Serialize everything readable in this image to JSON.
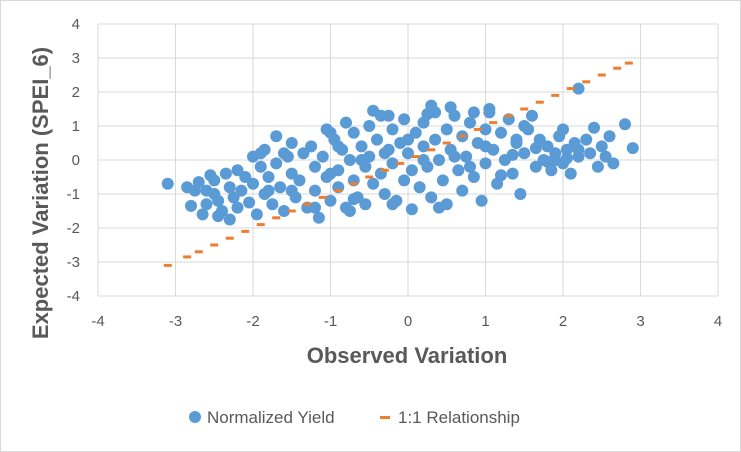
{
  "chart_data": {
    "type": "scatter",
    "title": "",
    "xlabel": "Observed Variation",
    "ylabel": "Expected Variation  (SPEI_6)",
    "xlim": [
      -4,
      4
    ],
    "ylim": [
      -4,
      4
    ],
    "x_ticks": [
      "-4",
      "-3",
      "-2",
      "-1",
      "0",
      "1",
      "2",
      "3",
      "4"
    ],
    "y_ticks": [
      "4",
      "3",
      "2",
      "1",
      "0",
      "-1",
      "-2",
      "-3",
      "-4"
    ],
    "grid": true,
    "legend": "bottom",
    "series": [
      {
        "name": "Normalized Yield",
        "marker": "circle",
        "color": "#5b9bd5",
        "points": [
          [
            -3.1,
            -0.7
          ],
          [
            -2.85,
            -0.8
          ],
          [
            -2.7,
            -0.65
          ],
          [
            -2.75,
            -0.9
          ],
          [
            -2.8,
            -1.35
          ],
          [
            -2.6,
            -1.3
          ],
          [
            -2.65,
            -1.6
          ],
          [
            -2.5,
            -1.0
          ],
          [
            -2.5,
            -0.6
          ],
          [
            -2.45,
            -1.2
          ],
          [
            -2.4,
            -1.5
          ],
          [
            -2.35,
            -0.4
          ],
          [
            -2.3,
            -0.8
          ],
          [
            -2.25,
            -1.1
          ],
          [
            -2.2,
            -0.3
          ],
          [
            -2.2,
            -1.4
          ],
          [
            -2.15,
            -0.9
          ],
          [
            -2.1,
            -0.5
          ],
          [
            -2.05,
            -1.25
          ],
          [
            -2.0,
            -0.7
          ],
          [
            -1.95,
            -1.6
          ],
          [
            -1.9,
            -0.2
          ],
          [
            -1.85,
            0.3
          ],
          [
            -1.85,
            -1.0
          ],
          [
            -1.8,
            -0.5
          ],
          [
            -1.75,
            -1.3
          ],
          [
            -1.7,
            0.7
          ],
          [
            -1.7,
            -0.1
          ],
          [
            -1.65,
            -0.8
          ],
          [
            -1.6,
            -1.5
          ],
          [
            -1.55,
            0.1
          ],
          [
            -1.5,
            0.5
          ],
          [
            -1.5,
            -0.4
          ],
          [
            -1.45,
            -1.1
          ],
          [
            -1.4,
            -0.6
          ],
          [
            -1.35,
            0.2
          ],
          [
            -1.3,
            -1.4
          ],
          [
            -1.25,
            0.4
          ],
          [
            -1.2,
            -0.2
          ],
          [
            -1.2,
            -0.9
          ],
          [
            -1.15,
            -1.7
          ],
          [
            -1.1,
            0.1
          ],
          [
            -1.05,
            -0.5
          ],
          [
            -1.05,
            0.9
          ],
          [
            -1.0,
            -1.2
          ],
          [
            -0.95,
            0.6
          ],
          [
            -0.9,
            -0.3
          ],
          [
            -0.9,
            -0.8
          ],
          [
            -0.85,
            0.3
          ],
          [
            -0.8,
            -1.4
          ],
          [
            -0.8,
            1.1
          ],
          [
            -0.75,
            0.0
          ],
          [
            -0.7,
            -0.6
          ],
          [
            -0.7,
            0.8
          ],
          [
            -0.65,
            -1.1
          ],
          [
            -0.6,
            0.4
          ],
          [
            -0.55,
            -0.2
          ],
          [
            -0.55,
            -1.3
          ],
          [
            -0.5,
            1.0
          ],
          [
            -0.5,
            0.1
          ],
          [
            -0.45,
            -0.7
          ],
          [
            -0.4,
            0.6
          ],
          [
            -0.35,
            -0.4
          ],
          [
            -0.35,
            1.3
          ],
          [
            -0.3,
            -1.0
          ],
          [
            -0.25,
            0.3
          ],
          [
            -0.2,
            -0.1
          ],
          [
            -0.2,
            0.9
          ],
          [
            -0.15,
            -1.2
          ],
          [
            -0.1,
            0.5
          ],
          [
            -0.05,
            -0.6
          ],
          [
            -0.05,
            1.2
          ],
          [
            0.0,
            0.2
          ],
          [
            0.05,
            -0.3
          ],
          [
            0.05,
            -1.45
          ],
          [
            0.1,
            0.8
          ],
          [
            0.15,
            -0.8
          ],
          [
            0.2,
            0.4
          ],
          [
            0.2,
            1.1
          ],
          [
            0.25,
            -0.2
          ],
          [
            0.3,
            -1.1
          ],
          [
            0.35,
            0.6
          ],
          [
            0.35,
            1.4
          ],
          [
            0.4,
            0.0
          ],
          [
            0.45,
            -0.6
          ],
          [
            0.5,
            0.9
          ],
          [
            0.5,
            -1.3
          ],
          [
            0.55,
            0.3
          ],
          [
            0.6,
            1.3
          ],
          [
            0.65,
            -0.3
          ],
          [
            0.7,
            0.7
          ],
          [
            0.7,
            -0.9
          ],
          [
            0.75,
            0.1
          ],
          [
            0.8,
            1.1
          ],
          [
            0.85,
            -0.5
          ],
          [
            0.9,
            0.5
          ],
          [
            0.95,
            -1.2
          ],
          [
            1.0,
            0.9
          ],
          [
            1.0,
            -0.1
          ],
          [
            1.05,
            1.4
          ],
          [
            1.1,
            0.3
          ],
          [
            1.15,
            -0.7
          ],
          [
            1.2,
            0.8
          ],
          [
            1.25,
            0.0
          ],
          [
            1.3,
            1.2
          ],
          [
            1.35,
            -0.4
          ],
          [
            1.4,
            0.5
          ],
          [
            1.45,
            -1.0
          ],
          [
            1.5,
            0.2
          ],
          [
            1.55,
            0.9
          ],
          [
            1.6,
            1.3
          ],
          [
            1.65,
            -0.2
          ],
          [
            1.7,
            0.6
          ],
          [
            1.75,
            0.0
          ],
          [
            1.8,
            0.4
          ],
          [
            1.85,
            -0.3
          ],
          [
            1.9,
            0.2
          ],
          [
            1.95,
            0.7
          ],
          [
            2.0,
            -0.1
          ],
          [
            2.0,
            0.9
          ],
          [
            2.05,
            0.3
          ],
          [
            2.1,
            -0.4
          ],
          [
            2.15,
            0.5
          ],
          [
            2.2,
            2.1
          ],
          [
            2.2,
            0.1
          ],
          [
            2.3,
            0.6
          ],
          [
            2.35,
            0.2
          ],
          [
            2.4,
            0.95
          ],
          [
            2.45,
            -0.2
          ],
          [
            2.5,
            0.4
          ],
          [
            2.55,
            0.1
          ],
          [
            2.6,
            0.7
          ],
          [
            2.65,
            -0.1
          ],
          [
            2.8,
            1.05
          ],
          [
            2.9,
            0.35
          ],
          [
            -1.5,
            -0.9
          ],
          [
            -1.0,
            -0.4
          ],
          [
            -0.6,
            0.0
          ],
          [
            -0.3,
            0.2
          ],
          [
            0.2,
            0.0
          ],
          [
            0.6,
            0.1
          ],
          [
            1.0,
            0.4
          ],
          [
            1.4,
            0.6
          ],
          [
            -1.8,
            -0.9
          ],
          [
            -0.9,
            0.4
          ],
          [
            0.3,
            1.6
          ],
          [
            0.55,
            1.55
          ],
          [
            0.25,
            1.35
          ],
          [
            -0.25,
            1.3
          ],
          [
            -0.45,
            1.45
          ],
          [
            1.05,
            1.5
          ],
          [
            0.85,
            1.4
          ],
          [
            0.4,
            -1.4
          ],
          [
            -0.2,
            -1.3
          ],
          [
            -0.75,
            -1.5
          ],
          [
            -1.2,
            -1.4
          ],
          [
            -2.45,
            -1.65
          ],
          [
            -2.3,
            -1.75
          ],
          [
            -1.0,
            0.8
          ],
          [
            -1.9,
            0.2
          ],
          [
            -2.0,
            0.1
          ],
          [
            -1.6,
            0.2
          ],
          [
            -0.7,
            -1.15
          ],
          [
            0.0,
            0.6
          ],
          [
            0.8,
            -0.2
          ],
          [
            1.5,
            1.0
          ],
          [
            1.9,
            0.0
          ],
          [
            2.2,
            0.3
          ],
          [
            -2.6,
            -0.9
          ],
          [
            -2.55,
            -0.45
          ],
          [
            1.2,
            -0.45
          ],
          [
            1.35,
            0.15
          ],
          [
            1.65,
            0.35
          ],
          [
            1.8,
            -0.05
          ],
          [
            2.05,
            0.05
          ]
        ]
      },
      {
        "name": "1:1 Relationship",
        "marker": "dash",
        "color": "#ed7d31",
        "points": [
          [
            -3.1,
            -3.1
          ],
          [
            -2.85,
            -2.85
          ],
          [
            -2.7,
            -2.7
          ],
          [
            -2.5,
            -2.5
          ],
          [
            -2.3,
            -2.3
          ],
          [
            -2.1,
            -2.1
          ],
          [
            -1.9,
            -1.9
          ],
          [
            -1.7,
            -1.7
          ],
          [
            -1.5,
            -1.5
          ],
          [
            -1.3,
            -1.3
          ],
          [
            -1.1,
            -1.1
          ],
          [
            -0.9,
            -0.9
          ],
          [
            -0.7,
            -0.7
          ],
          [
            -0.5,
            -0.5
          ],
          [
            -0.3,
            -0.3
          ],
          [
            -0.1,
            -0.1
          ],
          [
            0.1,
            0.1
          ],
          [
            0.3,
            0.3
          ],
          [
            0.5,
            0.5
          ],
          [
            0.7,
            0.7
          ],
          [
            0.9,
            0.9
          ],
          [
            1.1,
            1.1
          ],
          [
            1.3,
            1.3
          ],
          [
            1.5,
            1.5
          ],
          [
            1.7,
            1.7
          ],
          [
            1.9,
            1.9
          ],
          [
            2.1,
            2.1
          ],
          [
            2.3,
            2.3
          ],
          [
            2.5,
            2.5
          ],
          [
            2.7,
            2.7
          ],
          [
            2.85,
            2.85
          ]
        ]
      }
    ]
  }
}
